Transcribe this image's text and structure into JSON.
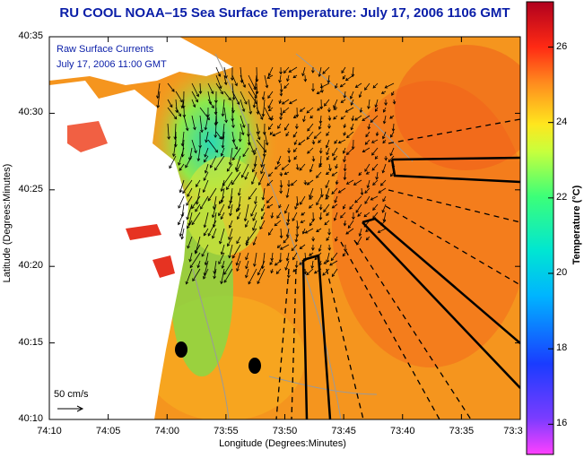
{
  "title": "RU COOL  NOAA–15  Sea Surface Temperature:  July 17, 2006 1106 GMT",
  "overlay": {
    "line1": "Raw Surface Currents",
    "line2": "July 17, 2006 11:00 GMT"
  },
  "axes": {
    "xlabel": "Longitude (Degrees:Minutes)",
    "ylabel": "Latitude (Degrees:Minutes)",
    "x_ticks": [
      "74:10",
      "74:05",
      "74:00",
      "73:55",
      "73:50",
      "73:45",
      "73:40",
      "73:35",
      "73:3"
    ],
    "y_ticks": [
      "40:35",
      "40:30",
      "40:25",
      "40:20",
      "40:15",
      "40:10"
    ]
  },
  "colorbar": {
    "label": "Temperature (°C)",
    "ticks": [
      "26",
      "24",
      "22",
      "20",
      "18",
      "16"
    ],
    "range": [
      15.2,
      27.2
    ]
  },
  "scale_label": "50 cm/s",
  "colors": {
    "title": "#0a1ea8",
    "sst_warm": "#f7921c",
    "sst_cool": "#3fe08a",
    "land": "#ffffff"
  }
}
